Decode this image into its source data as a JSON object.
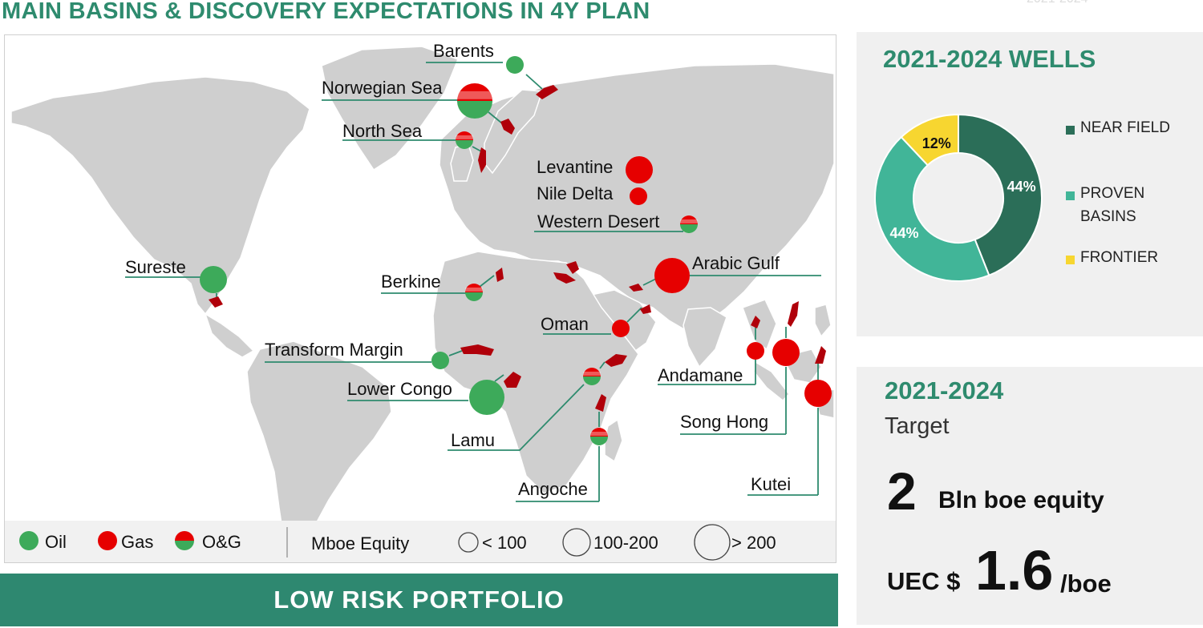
{
  "title": "MAIN BASINS & DISCOVERY EXPECTATIONS IN 4Y PLAN",
  "ghost_text": "2021-2024",
  "colors": {
    "accent": "#2e8b6e",
    "oil": "#3daa5a",
    "gas": "#e60000",
    "basin_shape": "#b0000a",
    "near_field": "#2b6e58",
    "proven": "#41b598",
    "frontier": "#f7d630"
  },
  "chart_data": [
    {
      "type": "map",
      "title": "MAIN BASINS & DISCOVERY EXPECTATIONS IN 4Y PLAN",
      "basins": [
        {
          "name": "Barents",
          "type": "Oil",
          "size": "< 100"
        },
        {
          "name": "Norwegian Sea",
          "type": "O&G",
          "size": "> 200"
        },
        {
          "name": "North Sea",
          "type": "O&G",
          "size": "< 100"
        },
        {
          "name": "Levantine",
          "type": "Gas",
          "size": "100-200"
        },
        {
          "name": "Nile Delta",
          "type": "Gas",
          "size": "< 100"
        },
        {
          "name": "Western Desert",
          "type": "O&G",
          "size": "< 100"
        },
        {
          "name": "Sureste",
          "type": "Oil",
          "size": "100-200"
        },
        {
          "name": "Arabic Gulf",
          "type": "Gas",
          "size": "> 200"
        },
        {
          "name": "Berkine",
          "type": "O&G",
          "size": "< 100"
        },
        {
          "name": "Oman",
          "type": "Gas",
          "size": "< 100"
        },
        {
          "name": "Transform Margin",
          "type": "Oil",
          "size": "< 100"
        },
        {
          "name": "Andamane",
          "type": "Gas",
          "size": "< 100"
        },
        {
          "name": "Song Hong",
          "type": "Gas",
          "size": "100-200"
        },
        {
          "name": "Lower Congo",
          "type": "Oil",
          "size": "> 200"
        },
        {
          "name": "Lamu",
          "type": "O&G",
          "size": "< 100"
        },
        {
          "name": "Kutei",
          "type": "Gas",
          "size": "100-200"
        },
        {
          "name": "Angoche",
          "type": "O&G",
          "size": "< 100"
        }
      ],
      "legend": {
        "types": [
          "Oil",
          "Gas",
          "O&G"
        ],
        "size_title": "Mboe Equity",
        "sizes": [
          "< 100",
          "100-200",
          "> 200"
        ]
      }
    },
    {
      "type": "pie",
      "title": "2021-2024 WELLS",
      "categories": [
        "NEAR FIELD",
        "PROVEN BASINS",
        "FRONTIER"
      ],
      "values": [
        44,
        44,
        12
      ],
      "value_labels": [
        "44%",
        "44%",
        "12%"
      ],
      "legend_lines": [
        [
          "NEAR FIELD"
        ],
        [
          "PROVEN",
          "BASINS"
        ],
        [
          "FRONTIER"
        ]
      ],
      "legend_position": "right"
    }
  ],
  "banner": "LOW RISK PORTFOLIO",
  "target": {
    "years": "2021-2024",
    "label": "Target",
    "value": "2",
    "unit": "Bln boe equity",
    "uec_prefix": "UEC $",
    "uec_value": "1.6",
    "uec_unit": "/boe"
  }
}
